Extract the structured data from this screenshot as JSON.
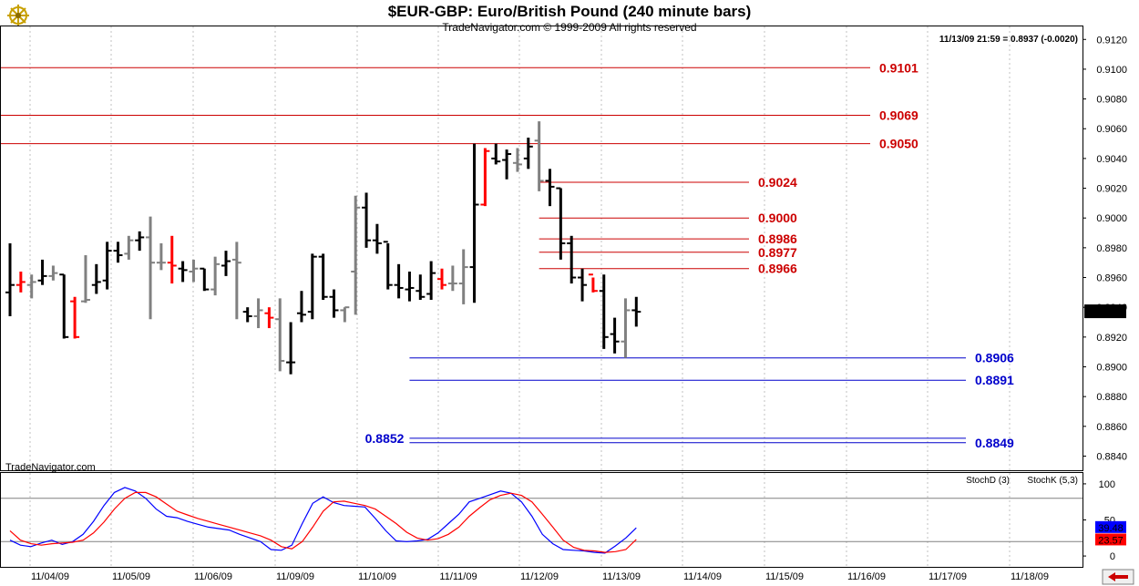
{
  "header": {
    "title": "$EUR-GBP:  Euro/British Pound  (240 minute bars)",
    "subtitle": "TradeNavigator.com © 1999-2009 All rights reserved",
    "quote": "11/13/09 21:59 = 0.8937 (-0.0020)",
    "watermark": "TradeNavigator.com"
  },
  "icons": {
    "top_left": "ship-wheel-icon",
    "bottom_right": "scroll-left-arrow-icon"
  },
  "colors": {
    "bar_black": "#000000",
    "bar_gray": "#808080",
    "bar_red": "#ff0000",
    "resistance": "#cc0000",
    "support": "#0000cc",
    "stoch_d": "#ff0000",
    "stoch_k": "#0000ff"
  },
  "chart_data": [
    {
      "type": "ohlc",
      "y_ticks": [
        "0.9120",
        "0.9100",
        "0.9080",
        "0.9060",
        "0.9040",
        "0.9020",
        "0.9000",
        "0.8980",
        "0.8960",
        "0.8940",
        "0.8920",
        "0.8900",
        "0.8880",
        "0.8860",
        "0.8840"
      ],
      "ylim": [
        0.8836,
        0.9122
      ],
      "x_tick_labels": [
        "11/04/09",
        "11/05/09",
        "11/06/09",
        "11/09/09",
        "11/10/09",
        "11/11/09",
        "11/12/09",
        "11/13/09",
        "11/14/09",
        "11/15/09",
        "11/16/09",
        "11/17/09",
        "11/18/09"
      ],
      "last_price": "0.8937",
      "bars": [
        {
          "o": 0.895,
          "h": 0.8983,
          "l": 0.8934,
          "c": 0.8955,
          "color": "black"
        },
        {
          "o": 0.8955,
          "h": 0.8964,
          "l": 0.895,
          "c": 0.8957,
          "color": "red"
        },
        {
          "o": 0.8955,
          "h": 0.8962,
          "l": 0.8946,
          "c": 0.8957,
          "color": "gray"
        },
        {
          "o": 0.8958,
          "h": 0.8972,
          "l": 0.8955,
          "c": 0.8961,
          "color": "black"
        },
        {
          "o": 0.8961,
          "h": 0.8968,
          "l": 0.8958,
          "c": 0.8963,
          "color": "gray"
        },
        {
          "o": 0.8962,
          "h": 0.8962,
          "l": 0.8919,
          "c": 0.892,
          "color": "black"
        },
        {
          "o": 0.8944,
          "h": 0.8947,
          "l": 0.8919,
          "c": 0.892,
          "color": "red"
        },
        {
          "o": 0.8944,
          "h": 0.8975,
          "l": 0.8943,
          "c": 0.8945,
          "color": "gray"
        },
        {
          "o": 0.8955,
          "h": 0.8969,
          "l": 0.8949,
          "c": 0.8957,
          "color": "black"
        },
        {
          "o": 0.8958,
          "h": 0.8984,
          "l": 0.8952,
          "c": 0.8978,
          "color": "black"
        },
        {
          "o": 0.8978,
          "h": 0.8984,
          "l": 0.897,
          "c": 0.8975,
          "color": "black"
        },
        {
          "o": 0.8976,
          "h": 0.8988,
          "l": 0.8972,
          "c": 0.8985,
          "color": "gray"
        },
        {
          "o": 0.8985,
          "h": 0.8991,
          "l": 0.8978,
          "c": 0.8987,
          "color": "black"
        },
        {
          "o": 0.8987,
          "h": 0.9001,
          "l": 0.8932,
          "c": 0.897,
          "color": "gray"
        },
        {
          "o": 0.897,
          "h": 0.8983,
          "l": 0.8965,
          "c": 0.897,
          "color": "gray"
        },
        {
          "o": 0.897,
          "h": 0.8988,
          "l": 0.8956,
          "c": 0.8968,
          "color": "red"
        },
        {
          "o": 0.8966,
          "h": 0.8971,
          "l": 0.8957,
          "c": 0.8965,
          "color": "black"
        },
        {
          "o": 0.8964,
          "h": 0.8972,
          "l": 0.8957,
          "c": 0.8966,
          "color": "gray"
        },
        {
          "o": 0.8966,
          "h": 0.8966,
          "l": 0.8951,
          "c": 0.8952,
          "color": "black"
        },
        {
          "o": 0.8952,
          "h": 0.8974,
          "l": 0.8948,
          "c": 0.8969,
          "color": "gray"
        },
        {
          "o": 0.8968,
          "h": 0.8978,
          "l": 0.8961,
          "c": 0.8971,
          "color": "black"
        },
        {
          "o": 0.8972,
          "h": 0.8984,
          "l": 0.8932,
          "c": 0.897,
          "color": "gray"
        },
        {
          "o": 0.8937,
          "h": 0.894,
          "l": 0.893,
          "c": 0.8934,
          "color": "black"
        },
        {
          "o": 0.8934,
          "h": 0.8946,
          "l": 0.8926,
          "c": 0.8938,
          "color": "gray"
        },
        {
          "o": 0.8936,
          "h": 0.894,
          "l": 0.8926,
          "c": 0.8933,
          "color": "red"
        },
        {
          "o": 0.8932,
          "h": 0.8946,
          "l": 0.8897,
          "c": 0.8904,
          "color": "gray"
        },
        {
          "o": 0.8903,
          "h": 0.893,
          "l": 0.8895,
          "c": 0.8903,
          "color": "black"
        },
        {
          "o": 0.8936,
          "h": 0.8951,
          "l": 0.893,
          "c": 0.8935,
          "color": "black"
        },
        {
          "o": 0.8937,
          "h": 0.8976,
          "l": 0.8932,
          "c": 0.8974,
          "color": "black"
        },
        {
          "o": 0.8974,
          "h": 0.8976,
          "l": 0.8945,
          "c": 0.8947,
          "color": "black"
        },
        {
          "o": 0.8947,
          "h": 0.8952,
          "l": 0.8933,
          "c": 0.8938,
          "color": "black"
        },
        {
          "o": 0.8938,
          "h": 0.894,
          "l": 0.893,
          "c": 0.894,
          "color": "gray"
        },
        {
          "o": 0.8964,
          "h": 0.9015,
          "l": 0.8935,
          "c": 0.9007,
          "color": "gray"
        },
        {
          "o": 0.9007,
          "h": 0.9017,
          "l": 0.898,
          "c": 0.8985,
          "color": "black"
        },
        {
          "o": 0.8985,
          "h": 0.8996,
          "l": 0.8976,
          "c": 0.8983,
          "color": "black"
        },
        {
          "o": 0.8984,
          "h": 0.8983,
          "l": 0.8952,
          "c": 0.8955,
          "color": "black"
        },
        {
          "o": 0.8955,
          "h": 0.8969,
          "l": 0.8946,
          "c": 0.8953,
          "color": "black"
        },
        {
          "o": 0.8952,
          "h": 0.8964,
          "l": 0.8944,
          "c": 0.8953,
          "color": "black"
        },
        {
          "o": 0.8951,
          "h": 0.8962,
          "l": 0.8945,
          "c": 0.8947,
          "color": "black"
        },
        {
          "o": 0.8949,
          "h": 0.8971,
          "l": 0.8945,
          "c": 0.8963,
          "color": "black"
        },
        {
          "o": 0.8959,
          "h": 0.8966,
          "l": 0.8952,
          "c": 0.8955,
          "color": "red"
        },
        {
          "o": 0.8956,
          "h": 0.8968,
          "l": 0.8951,
          "c": 0.8956,
          "color": "gray"
        },
        {
          "o": 0.8956,
          "h": 0.8979,
          "l": 0.8942,
          "c": 0.8967,
          "color": "gray"
        },
        {
          "o": 0.8967,
          "h": 0.905,
          "l": 0.8943,
          "c": 0.9009,
          "color": "black"
        },
        {
          "o": 0.9009,
          "h": 0.9047,
          "l": 0.9008,
          "c": 0.9045,
          "color": "red"
        },
        {
          "o": 0.904,
          "h": 0.905,
          "l": 0.9036,
          "c": 0.9038,
          "color": "black"
        },
        {
          "o": 0.9039,
          "h": 0.9046,
          "l": 0.9026,
          "c": 0.9043,
          "color": "black"
        },
        {
          "o": 0.9037,
          "h": 0.9047,
          "l": 0.9031,
          "c": 0.9036,
          "color": "gray"
        },
        {
          "o": 0.904,
          "h": 0.9054,
          "l": 0.9033,
          "c": 0.9048,
          "color": "black"
        },
        {
          "o": 0.9052,
          "h": 0.9065,
          "l": 0.9018,
          "c": 0.9025,
          "color": "gray"
        },
        {
          "o": 0.9025,
          "h": 0.9033,
          "l": 0.9008,
          "c": 0.9021,
          "color": "black"
        },
        {
          "o": 0.902,
          "h": 0.902,
          "l": 0.8972,
          "c": 0.8983,
          "color": "black"
        },
        {
          "o": 0.8983,
          "h": 0.8988,
          "l": 0.8956,
          "c": 0.896,
          "color": "black"
        },
        {
          "o": 0.896,
          "h": 0.8966,
          "l": 0.8944,
          "c": 0.8955,
          "color": "black"
        },
        {
          "o": 0.8962,
          "h": 0.896,
          "l": 0.895,
          "c": 0.8951,
          "color": "red"
        },
        {
          "o": 0.8951,
          "h": 0.8962,
          "l": 0.8912,
          "c": 0.892,
          "color": "black"
        },
        {
          "o": 0.8922,
          "h": 0.8933,
          "l": 0.8909,
          "c": 0.8917,
          "color": "black"
        },
        {
          "o": 0.8917,
          "h": 0.8946,
          "l": 0.8906,
          "c": 0.8938,
          "color": "gray"
        },
        {
          "o": 0.8938,
          "h": 0.8947,
          "l": 0.8927,
          "c": 0.8937,
          "color": "black"
        }
      ],
      "levels": [
        {
          "value": 0.9101,
          "label": "0.9101",
          "color": "resistance",
          "from": 0,
          "to": 57,
          "label_side": "right"
        },
        {
          "value": 0.9069,
          "label": "0.9069",
          "color": "resistance",
          "from": 0,
          "to": 57,
          "label_side": "right"
        },
        {
          "value": 0.905,
          "label": "0.9050",
          "color": "resistance",
          "from": 0,
          "to": 57,
          "label_side": "right"
        },
        {
          "value": 0.9024,
          "label": "0.9024",
          "color": "resistance",
          "from": 49,
          "to": 64,
          "label_side": "right"
        },
        {
          "value": 0.9,
          "label": "0.9000",
          "color": "resistance",
          "from": 49,
          "to": 64,
          "label_side": "right"
        },
        {
          "value": 0.8986,
          "label": "0.8986",
          "color": "resistance",
          "from": 49,
          "to": 64,
          "label_side": "right"
        },
        {
          "value": 0.8977,
          "label": "0.8977",
          "color": "resistance",
          "from": 49,
          "to": 64,
          "label_side": "right"
        },
        {
          "value": 0.8966,
          "label": "0.8966",
          "color": "resistance",
          "from": 49,
          "to": 64,
          "label_side": "right"
        },
        {
          "value": 0.8906,
          "label": "0.8906",
          "color": "support",
          "from": 37,
          "to": 91,
          "label_side": "right"
        },
        {
          "value": 0.8891,
          "label": "0.8891",
          "color": "support",
          "from": 37,
          "to": 91,
          "label_side": "right"
        },
        {
          "value": 0.8852,
          "label": "0.8852",
          "color": "support",
          "from": 37,
          "to": 91,
          "label_side": "left"
        },
        {
          "value": 0.8849,
          "label": "0.8849",
          "color": "support",
          "from": 37,
          "to": 91,
          "label_side": "right"
        }
      ]
    },
    {
      "type": "line",
      "y_ticks": [
        "100",
        "50",
        "0"
      ],
      "ylim": [
        -10,
        110
      ],
      "ref_lines": [
        80,
        20
      ],
      "legend": [
        {
          "name": "StochD (3)",
          "color": "stoch_d"
        },
        {
          "name": "StochK (5,3)",
          "color": "stoch_k"
        }
      ],
      "last_values": {
        "k": "39.48",
        "d": "23.57"
      },
      "series": [
        {
          "name": "StochK (5,3)",
          "color": "stoch_k",
          "values": [
            22,
            15,
            13,
            18,
            22,
            16,
            20,
            30,
            48,
            70,
            88,
            95,
            90,
            80,
            65,
            55,
            53,
            48,
            44,
            40,
            38,
            36,
            30,
            25,
            20,
            9,
            8,
            15,
            45,
            73,
            82,
            74,
            70,
            69,
            68,
            52,
            35,
            21,
            20,
            21,
            23,
            32,
            45,
            58,
            75,
            80,
            85,
            90,
            87,
            75,
            55,
            30,
            17,
            9,
            8,
            7,
            5,
            4,
            14,
            25,
            39
          ]
        },
        {
          "name": "StochD (3)",
          "color": "stoch_d",
          "values": [
            35,
            22,
            17,
            15,
            17,
            18,
            19,
            22,
            32,
            47,
            65,
            80,
            88,
            88,
            82,
            72,
            62,
            57,
            52,
            48,
            44,
            40,
            36,
            32,
            28,
            22,
            13,
            10,
            20,
            40,
            62,
            75,
            76,
            73,
            70,
            65,
            55,
            45,
            33,
            25,
            22,
            24,
            30,
            40,
            55,
            67,
            78,
            84,
            87,
            84,
            75,
            58,
            40,
            22,
            12,
            8,
            7,
            5,
            6,
            9,
            23
          ]
        }
      ]
    }
  ]
}
